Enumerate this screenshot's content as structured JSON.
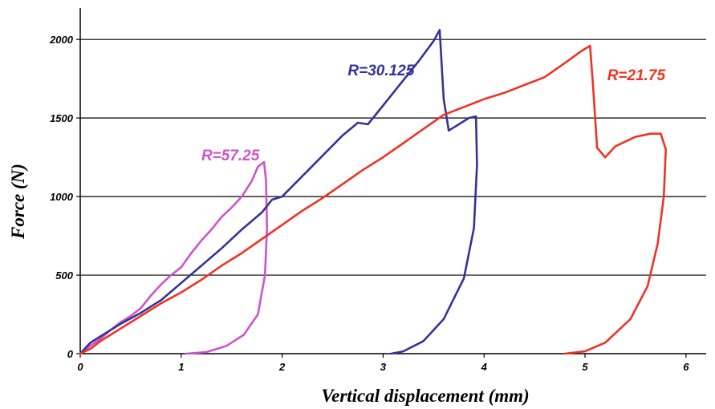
{
  "chart_data": {
    "type": "line",
    "title": "",
    "xlabel": "Vertical displacement (mm)",
    "ylabel": "Force (N)",
    "xlim": [
      0,
      6.2
    ],
    "ylim": [
      0,
      2200
    ],
    "x_ticks": [
      0,
      1,
      2,
      3,
      4,
      5,
      6
    ],
    "y_ticks": [
      0,
      500,
      1000,
      1500,
      2000
    ],
    "grid": "horizontal",
    "legend": "none",
    "series": [
      {
        "name": "R=57.25",
        "color": "#cc55cc",
        "points": [
          [
            0,
            0
          ],
          [
            0.1,
            50
          ],
          [
            0.2,
            95
          ],
          [
            0.3,
            150
          ],
          [
            0.4,
            200
          ],
          [
            0.5,
            240
          ],
          [
            0.6,
            290
          ],
          [
            0.7,
            370
          ],
          [
            0.8,
            440
          ],
          [
            0.9,
            500
          ],
          [
            1.0,
            550
          ],
          [
            1.1,
            640
          ],
          [
            1.2,
            720
          ],
          [
            1.3,
            790
          ],
          [
            1.4,
            870
          ],
          [
            1.5,
            930
          ],
          [
            1.6,
            1000
          ],
          [
            1.7,
            1100
          ],
          [
            1.76,
            1190
          ],
          [
            1.82,
            1220
          ],
          [
            1.84,
            1100
          ],
          [
            1.85,
            800
          ],
          [
            1.83,
            500
          ],
          [
            1.76,
            250
          ],
          [
            1.62,
            120
          ],
          [
            1.45,
            50
          ],
          [
            1.25,
            10
          ],
          [
            1.05,
            0
          ]
        ]
      },
      {
        "name": "R=30.125",
        "color": "#333399",
        "points": [
          [
            0,
            0
          ],
          [
            0.1,
            70
          ],
          [
            0.2,
            110
          ],
          [
            0.4,
            190
          ],
          [
            0.6,
            260
          ],
          [
            0.8,
            340
          ],
          [
            1.0,
            450
          ],
          [
            1.2,
            560
          ],
          [
            1.4,
            670
          ],
          [
            1.6,
            790
          ],
          [
            1.8,
            900
          ],
          [
            1.9,
            980
          ],
          [
            2.0,
            1000
          ],
          [
            2.2,
            1130
          ],
          [
            2.4,
            1260
          ],
          [
            2.6,
            1390
          ],
          [
            2.75,
            1470
          ],
          [
            2.85,
            1460
          ],
          [
            3.0,
            1580
          ],
          [
            3.2,
            1740
          ],
          [
            3.35,
            1860
          ],
          [
            3.5,
            1990
          ],
          [
            3.56,
            2060
          ],
          [
            3.6,
            1620
          ],
          [
            3.65,
            1420
          ],
          [
            3.75,
            1460
          ],
          [
            3.85,
            1500
          ],
          [
            3.92,
            1510
          ],
          [
            3.93,
            1200
          ],
          [
            3.9,
            800
          ],
          [
            3.8,
            480
          ],
          [
            3.6,
            220
          ],
          [
            3.4,
            80
          ],
          [
            3.2,
            15
          ],
          [
            3.08,
            0
          ]
        ]
      },
      {
        "name": "R=21.75",
        "color": "#ee3322",
        "points": [
          [
            0,
            0
          ],
          [
            0.1,
            30
          ],
          [
            0.2,
            80
          ],
          [
            0.4,
            160
          ],
          [
            0.6,
            240
          ],
          [
            0.8,
            320
          ],
          [
            1.0,
            390
          ],
          [
            1.2,
            470
          ],
          [
            1.4,
            560
          ],
          [
            1.6,
            640
          ],
          [
            1.8,
            730
          ],
          [
            2.0,
            820
          ],
          [
            2.2,
            910
          ],
          [
            2.4,
            990
          ],
          [
            2.6,
            1080
          ],
          [
            2.8,
            1170
          ],
          [
            3.0,
            1250
          ],
          [
            3.2,
            1340
          ],
          [
            3.4,
            1430
          ],
          [
            3.6,
            1520
          ],
          [
            3.8,
            1570
          ],
          [
            4.0,
            1620
          ],
          [
            4.2,
            1660
          ],
          [
            4.4,
            1710
          ],
          [
            4.6,
            1760
          ],
          [
            4.8,
            1850
          ],
          [
            4.95,
            1920
          ],
          [
            5.05,
            1960
          ],
          [
            5.08,
            1700
          ],
          [
            5.12,
            1310
          ],
          [
            5.2,
            1250
          ],
          [
            5.3,
            1320
          ],
          [
            5.5,
            1380
          ],
          [
            5.65,
            1400
          ],
          [
            5.75,
            1400
          ],
          [
            5.8,
            1300
          ],
          [
            5.78,
            1000
          ],
          [
            5.72,
            700
          ],
          [
            5.62,
            430
          ],
          [
            5.45,
            220
          ],
          [
            5.2,
            70
          ],
          [
            5.0,
            15
          ],
          [
            4.8,
            0
          ]
        ]
      }
    ],
    "annotations": [
      {
        "text": "R=57.25",
        "x": 1.2,
        "y": 1230,
        "color": "#cc55cc"
      },
      {
        "text": "R=30.125",
        "x": 2.65,
        "y": 1770,
        "color": "#333399"
      },
      {
        "text": "R=21.75",
        "x": 5.22,
        "y": 1740,
        "color": "#ee3322"
      }
    ]
  }
}
